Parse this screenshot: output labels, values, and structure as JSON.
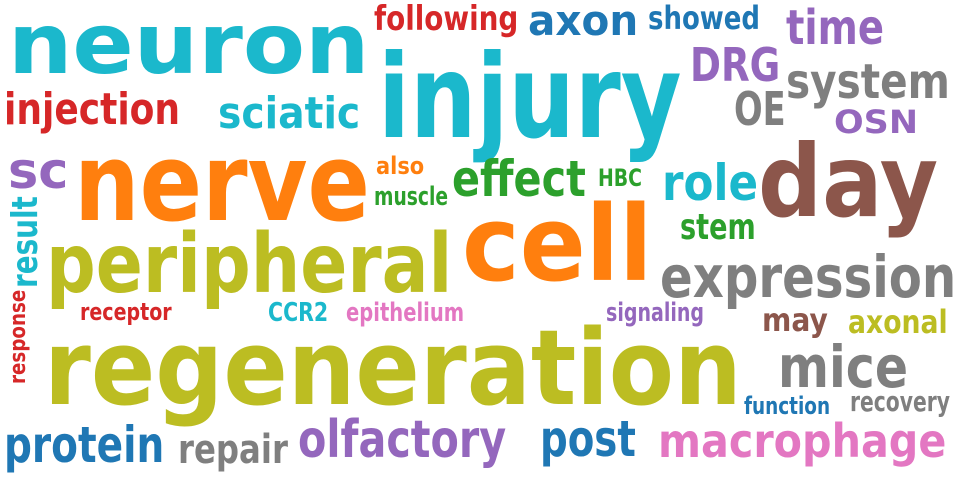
{
  "words": [
    {
      "id": "neuron",
      "text": "neuron",
      "color": "#1bb8cc"
    },
    {
      "id": "following",
      "text": "following",
      "color": "#d62728"
    },
    {
      "id": "axon",
      "text": "axon",
      "color": "#1f77b4"
    },
    {
      "id": "showed",
      "text": "showed",
      "color": "#1f77b4"
    },
    {
      "id": "time",
      "text": "time",
      "color": "#9467bd"
    },
    {
      "id": "injury",
      "text": "injury",
      "color": "#1bb8cc"
    },
    {
      "id": "drg",
      "text": "DRG",
      "color": "#9467bd"
    },
    {
      "id": "system",
      "text": "system",
      "color": "#7f7f7f"
    },
    {
      "id": "injection",
      "text": "injection",
      "color": "#d62728"
    },
    {
      "id": "sciatic",
      "text": "sciatic",
      "color": "#1bb8cc"
    },
    {
      "id": "oe",
      "text": "OE",
      "color": "#7f7f7f"
    },
    {
      "id": "osn",
      "text": "OSN",
      "color": "#9467bd"
    },
    {
      "id": "sc",
      "text": "sc",
      "color": "#9467bd"
    },
    {
      "id": "nerve",
      "text": "nerve",
      "color": "#ff7f0e"
    },
    {
      "id": "also",
      "text": "also",
      "color": "#ff7f0e"
    },
    {
      "id": "muscle",
      "text": "muscle",
      "color": "#2ca02c"
    },
    {
      "id": "effect",
      "text": "effect",
      "color": "#2ca02c"
    },
    {
      "id": "hbc",
      "text": "HBC",
      "color": "#2ca02c"
    },
    {
      "id": "role",
      "text": "role",
      "color": "#1bb8cc"
    },
    {
      "id": "day",
      "text": "day",
      "color": "#8c564b"
    },
    {
      "id": "result",
      "text": "result",
      "color": "#1bb8cc"
    },
    {
      "id": "stem",
      "text": "stem",
      "color": "#2ca02c"
    },
    {
      "id": "cell",
      "text": "cell",
      "color": "#ff7f0e"
    },
    {
      "id": "peripheral",
      "text": "peripheral",
      "color": "#bcbd22"
    },
    {
      "id": "expression",
      "text": "expression",
      "color": "#7f7f7f"
    },
    {
      "id": "response",
      "text": "response",
      "color": "#d62728"
    },
    {
      "id": "receptor",
      "text": "receptor",
      "color": "#d62728"
    },
    {
      "id": "ccr2",
      "text": "CCR2",
      "color": "#1bb8cc"
    },
    {
      "id": "epithelium",
      "text": "epithelium",
      "color": "#e377c2"
    },
    {
      "id": "signaling",
      "text": "signaling",
      "color": "#9467bd"
    },
    {
      "id": "may",
      "text": "may",
      "color": "#8c564b"
    },
    {
      "id": "axonal",
      "text": "axonal",
      "color": "#bcbd22"
    },
    {
      "id": "regeneration",
      "text": "regeneration",
      "color": "#bcbd22"
    },
    {
      "id": "mice",
      "text": "mice",
      "color": "#7f7f7f"
    },
    {
      "id": "function",
      "text": "function",
      "color": "#1f77b4"
    },
    {
      "id": "recovery",
      "text": "recovery",
      "color": "#7f7f7f"
    },
    {
      "id": "protein",
      "text": "protein",
      "color": "#1f77b4"
    },
    {
      "id": "repair",
      "text": "repair",
      "color": "#7f7f7f"
    },
    {
      "id": "olfactory",
      "text": "olfactory",
      "color": "#9467bd"
    },
    {
      "id": "post",
      "text": "post",
      "color": "#1f77b4"
    },
    {
      "id": "macrophage",
      "text": "macrophage",
      "color": "#e377c2"
    }
  ]
}
